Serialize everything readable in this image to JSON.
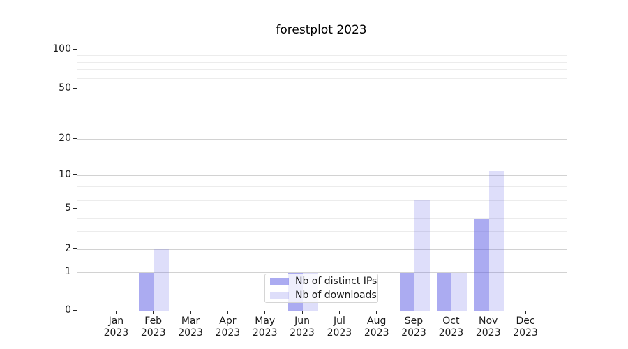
{
  "title": "forestplot 2023",
  "colors": {
    "bar_distinct_ips": "rgba(88,88,228,0.5)",
    "bar_downloads": "rgba(88,88,228,0.2)",
    "grid_major": "#d2d2d2",
    "grid_minor": "#ececec",
    "spine": "#262626",
    "text": "#1a1a1a"
  },
  "chart_data": {
    "type": "bar",
    "title": "forestplot 2023",
    "xlabel": "",
    "ylabel": "",
    "year": "2023",
    "categories": [
      "Jan",
      "Feb",
      "Mar",
      "Apr",
      "May",
      "Jun",
      "Jul",
      "Aug",
      "Sep",
      "Oct",
      "Nov",
      "Dec"
    ],
    "series": [
      {
        "name": "Nb of distinct IPs",
        "color": "rgba(88,88,228,0.5)",
        "values": [
          0,
          1,
          0,
          0,
          0,
          1,
          0,
          0,
          1,
          1,
          4,
          0
        ]
      },
      {
        "name": "Nb of downloads",
        "color": "rgba(88,88,228,0.2)",
        "values": [
          0,
          2,
          0,
          0,
          0,
          1,
          0,
          0,
          6,
          1,
          11,
          0
        ]
      }
    ],
    "y_axis": {
      "scale": "symlog",
      "major_tick_labels": [
        "0",
        "1",
        "2",
        "5",
        "10",
        "20",
        "50",
        "100"
      ],
      "major_ticks": [
        0,
        1,
        2,
        5,
        10,
        20,
        50,
        100
      ],
      "minor_gridlines": [
        3,
        4,
        6,
        7,
        8,
        9,
        30,
        40,
        60,
        70,
        80,
        90
      ],
      "anchors": [
        [
          0,
          0
        ],
        [
          1,
          0.1417
        ],
        [
          2,
          0.2288
        ],
        [
          5,
          0.3796
        ],
        [
          10,
          0.5041
        ],
        [
          20,
          0.6411
        ],
        [
          50,
          0.8301
        ],
        [
          100,
          0.9765
        ]
      ]
    },
    "legend": {
      "position": "lower center",
      "entries": [
        "Nb of distinct IPs",
        "Nb of downloads"
      ]
    },
    "grid": true
  }
}
